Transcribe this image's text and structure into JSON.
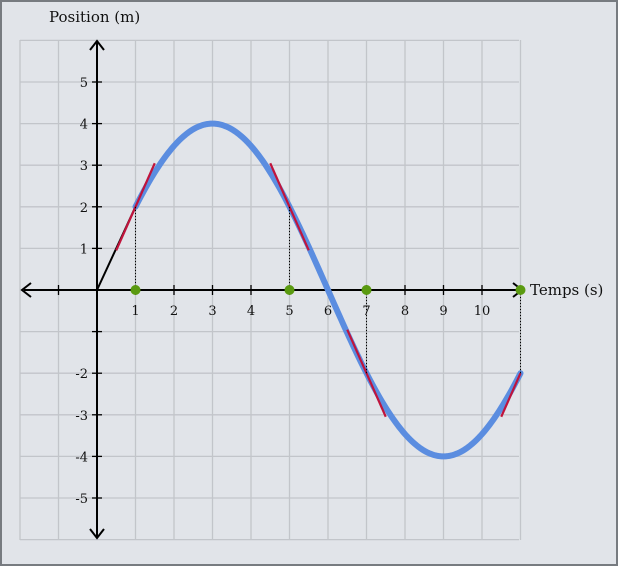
{
  "chart_data": {
    "type": "line",
    "title": "",
    "xlabel": "Temps (s)",
    "ylabel": "Position (m)",
    "xlim": [
      -2,
      11
    ],
    "ylim": [
      -6,
      6
    ],
    "grid": true,
    "x_tick_labels": [
      "1",
      "2",
      "3",
      "4",
      "5",
      "6",
      "7",
      "8",
      "9",
      "10"
    ],
    "y_tick_labels": [
      "5",
      "4",
      "3",
      "2",
      "1",
      "-2",
      "-3",
      "-4",
      "-5"
    ],
    "curve": {
      "type": "sine",
      "amplitude": 4,
      "period": 12,
      "x_range": [
        1,
        11
      ],
      "color": "#5b8de0"
    },
    "segments": [
      {
        "from": [
          0,
          0
        ],
        "to": [
          1,
          2
        ]
      },
      {
        "from": [
          5,
          2
        ],
        "to": [
          7,
          -2
        ]
      }
    ],
    "tangent_lines": [
      {
        "x": 1,
        "y": 2,
        "slope": 2.094
      },
      {
        "x": 5,
        "y": 2,
        "slope": -2.094
      },
      {
        "x": 7,
        "y": -2,
        "slope": -2.094
      },
      {
        "x": 11,
        "y": -2,
        "slope": 2.094
      }
    ],
    "marked_points_x": [
      1,
      5,
      7,
      11
    ],
    "colors": {
      "background": "#e1e4e9",
      "grid": "#c2c5ca",
      "axis": "#000000",
      "curve": "#5b8de0",
      "tangent": "#c0143c",
      "point": "#5a9a10",
      "segment": "#000000"
    }
  }
}
